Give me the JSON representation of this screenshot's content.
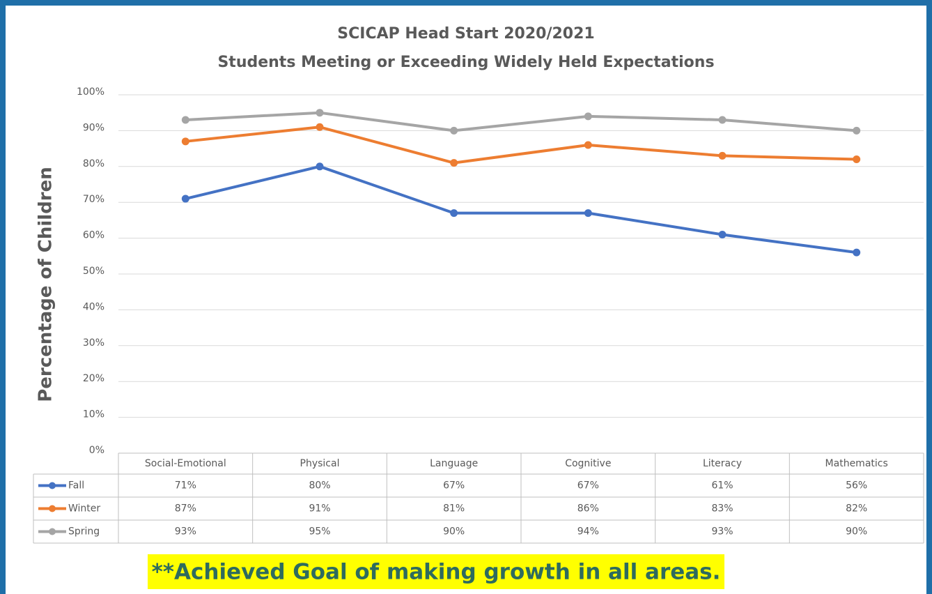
{
  "chart_data": {
    "type": "line",
    "title": "SCICAP Head Start 2020/2021",
    "subtitle": "Students Meeting or Exceeding Widely Held Expectations",
    "y_label": "Percentage of Children",
    "annotation": "**Achieved Goal of making growth in all areas.",
    "categories": [
      "Social-Emotional",
      "Physical",
      "Language",
      "Cognitive",
      "Literacy",
      "Mathematics"
    ],
    "series": [
      {
        "name": "Fall",
        "color": "#4472c4",
        "values": [
          71,
          80,
          67,
          67,
          61,
          56
        ],
        "value_labels": [
          "71%",
          "80%",
          "67%",
          "67%",
          "61%",
          "56%"
        ]
      },
      {
        "name": "Winter",
        "color": "#ed7d31",
        "values": [
          87,
          91,
          81,
          86,
          83,
          82
        ],
        "value_labels": [
          "87%",
          "91%",
          "81%",
          "86%",
          "83%",
          "82%"
        ]
      },
      {
        "name": "Spring",
        "color": "#a5a5a5",
        "values": [
          93,
          95,
          90,
          94,
          93,
          90
        ],
        "value_labels": [
          "93%",
          "95%",
          "90%",
          "94%",
          "93%",
          "90%"
        ]
      }
    ],
    "ylim": [
      0,
      100
    ],
    "yticks": [
      {
        "value": 0,
        "label": "0%"
      },
      {
        "value": 10,
        "label": "10%"
      },
      {
        "value": 20,
        "label": "20%"
      },
      {
        "value": 30,
        "label": "30%"
      },
      {
        "value": 40,
        "label": "40%"
      },
      {
        "value": 50,
        "label": "50%"
      },
      {
        "value": 60,
        "label": "60%"
      },
      {
        "value": 70,
        "label": "70%"
      },
      {
        "value": 80,
        "label": "80%"
      },
      {
        "value": 90,
        "label": "90%"
      },
      {
        "value": 100,
        "label": "100%"
      }
    ],
    "grid": true
  }
}
